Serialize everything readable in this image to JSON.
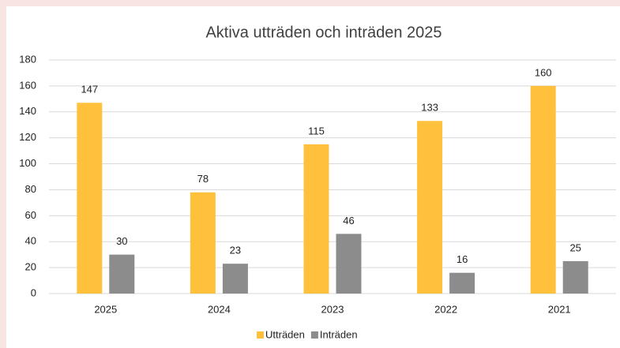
{
  "chart_data": {
    "type": "bar",
    "title": "Aktiva utträden och inträden 2025",
    "categories": [
      "2025",
      "2024",
      "2023",
      "2022",
      "2021"
    ],
    "series": [
      {
        "name": "Utträden",
        "color": "#ffc13b",
        "values": [
          147,
          78,
          115,
          133,
          160
        ]
      },
      {
        "name": "Inträden",
        "color": "#8c8c8c",
        "values": [
          30,
          23,
          46,
          16,
          25
        ]
      }
    ],
    "ylim": [
      0,
      180
    ],
    "yticks": [
      0,
      20,
      40,
      60,
      80,
      100,
      120,
      140,
      160,
      180
    ],
    "grid": true,
    "legend": "bottom"
  }
}
